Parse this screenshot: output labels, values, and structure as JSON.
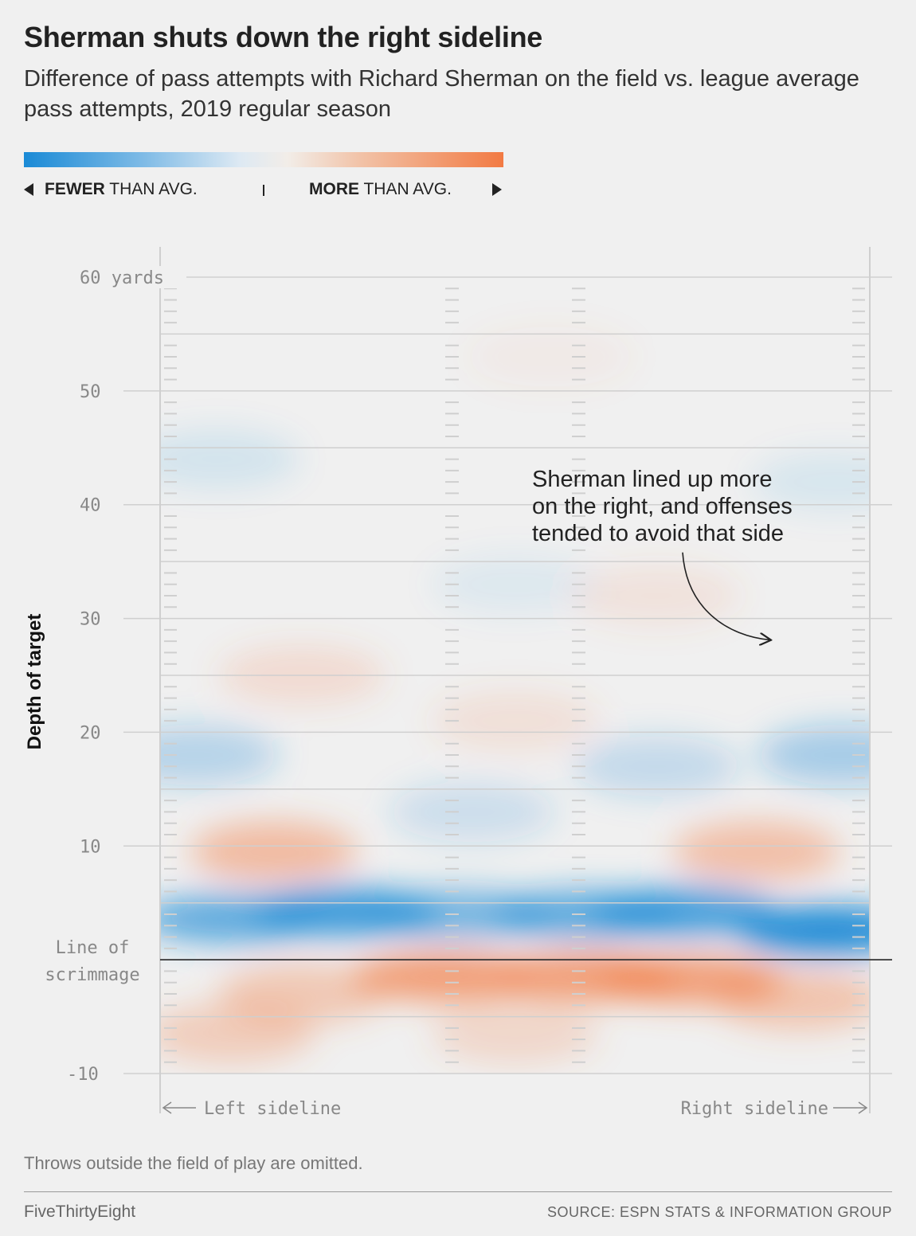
{
  "title": "Sherman shuts down the right sideline",
  "subtitle": "Difference of pass attempts with Richard Sherman on the field vs. league average pass attempts, 2019 regular season",
  "legend": {
    "fewer_bold": "FEWER",
    "fewer_rest": " THAN AVG.",
    "more_bold": "MORE",
    "more_rest": " THAN AVG.",
    "colors": {
      "fewer": "#1a8ad6",
      "neutral": "#f0f0f0",
      "more": "#f27a43"
    }
  },
  "footnote": "Throws outside the field of play are omitted.",
  "footer": {
    "brand": "FiveThirtyEight",
    "source": "SOURCE: ESPN STATS & INFORMATION GROUP"
  },
  "chart_data": {
    "type": "heatmap",
    "ylabel": "Depth of target",
    "ylim": [
      -10,
      60
    ],
    "yticks": [
      {
        "value": 60,
        "label": "60 yards"
      },
      {
        "value": 50,
        "label": "50"
      },
      {
        "value": 40,
        "label": "40"
      },
      {
        "value": 30,
        "label": "30"
      },
      {
        "value": 20,
        "label": "20"
      },
      {
        "value": 10,
        "label": "10"
      },
      {
        "value": -10,
        "label": "-10"
      }
    ],
    "line_of_scrimmage": {
      "value": 0,
      "label_line1": "Line of",
      "label_line2": "scrimmage"
    },
    "x_labels": {
      "left": "Left sideline",
      "right": "Right sideline"
    },
    "annotation": {
      "lines": [
        "Sherman lined up more",
        "on the right, and offenses",
        "tended to avoid that side"
      ]
    },
    "colors": {
      "fewer": "#1a8ad6",
      "more": "#f27a43"
    },
    "xlim": [
      0,
      1
    ],
    "blobs": [
      {
        "x": 0.1,
        "y": 3.6,
        "value": -0.7
      },
      {
        "x": 0.26,
        "y": 4.2,
        "value": -0.85
      },
      {
        "x": 0.42,
        "y": 4.0,
        "value": -0.6
      },
      {
        "x": 0.6,
        "y": 4.0,
        "value": -0.7
      },
      {
        "x": 0.74,
        "y": 4.2,
        "value": -0.8
      },
      {
        "x": 0.94,
        "y": 2.6,
        "value": -1.0
      },
      {
        "x": 0.96,
        "y": 18,
        "value": -0.35
      },
      {
        "x": 0.05,
        "y": 18,
        "value": -0.28
      },
      {
        "x": 0.7,
        "y": 17,
        "value": -0.22
      },
      {
        "x": 0.44,
        "y": 13,
        "value": -0.18
      },
      {
        "x": 0.08,
        "y": 44,
        "value": -0.12
      },
      {
        "x": 0.5,
        "y": 33,
        "value": -0.08
      },
      {
        "x": 0.95,
        "y": 42,
        "value": -0.1
      },
      {
        "x": 0.2,
        "y": -3.0,
        "value": 0.35
      },
      {
        "x": 0.4,
        "y": -1.5,
        "value": 0.72
      },
      {
        "x": 0.6,
        "y": -1.5,
        "value": 0.72
      },
      {
        "x": 0.75,
        "y": -1.8,
        "value": 0.7
      },
      {
        "x": 0.1,
        "y": -6.5,
        "value": 0.3
      },
      {
        "x": 0.9,
        "y": -3.5,
        "value": 0.38
      },
      {
        "x": 0.5,
        "y": -6.5,
        "value": 0.22
      },
      {
        "x": 0.16,
        "y": 9.5,
        "value": 0.45
      },
      {
        "x": 0.84,
        "y": 9.5,
        "value": 0.42
      },
      {
        "x": 0.2,
        "y": 25,
        "value": 0.18
      },
      {
        "x": 0.5,
        "y": 21,
        "value": 0.14
      },
      {
        "x": 0.7,
        "y": 32,
        "value": 0.12
      },
      {
        "x": 0.55,
        "y": 53,
        "value": 0.06
      }
    ]
  }
}
